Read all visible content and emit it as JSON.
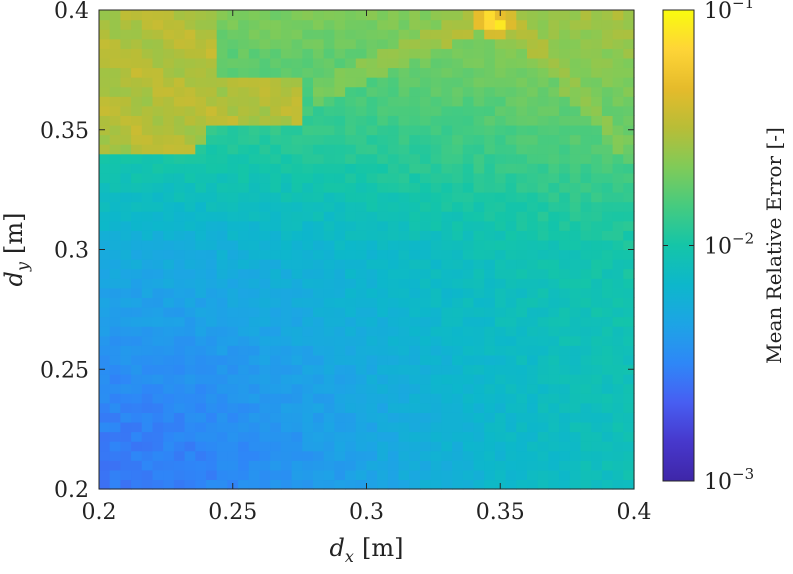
{
  "chart_data": {
    "type": "heatmap",
    "title": "",
    "xlabel": "d_x [m]",
    "xlabel_main": "d",
    "xlabel_sub": "x",
    "xlabel_unit": "[m]",
    "ylabel": "d_y [m]",
    "ylabel_main": "d",
    "ylabel_sub": "y",
    "ylabel_unit": "[m]",
    "xlim": [
      0.2,
      0.4
    ],
    "ylim": [
      0.2,
      0.4
    ],
    "grid": false,
    "x_ticks": [
      0.2,
      0.25,
      0.3,
      0.35,
      0.4
    ],
    "x_tick_labels": [
      "0.2",
      "0.25",
      "0.3",
      "0.35",
      "0.4"
    ],
    "y_ticks": [
      0.2,
      0.25,
      0.3,
      0.35,
      0.4
    ],
    "y_tick_labels": [
      "0.2",
      "0.25",
      "0.3",
      "0.35",
      "0.4"
    ],
    "grid_resolution": 50,
    "colormap": "parula",
    "color_scale": "log",
    "colorbar": {
      "label": "Mean Relative Error [-]",
      "range": [
        0.001,
        0.1
      ],
      "ticks": [
        {
          "value": 0.1,
          "mantissa": "10",
          "exponent": "−1"
        },
        {
          "value": 0.01,
          "mantissa": "10",
          "exponent": "−2"
        },
        {
          "value": 0.001,
          "mantissa": "10",
          "exponent": "−3"
        }
      ]
    },
    "approx_regions": [
      {
        "region": "top-left",
        "x_range": [
          0.2,
          0.28
        ],
        "y_range": [
          0.34,
          0.4
        ],
        "approx_error": 0.03
      },
      {
        "region": "upper-right band",
        "x_range": [
          0.28,
          0.4
        ],
        "y_range": [
          0.3,
          0.4
        ],
        "approx_error": 0.015
      },
      {
        "region": "bottom-left",
        "x_range": [
          0.2,
          0.23
        ],
        "y_range": [
          0.2,
          0.25
        ],
        "approx_error": 0.004
      },
      {
        "region": "hotspot",
        "x": 0.348,
        "y": 0.395,
        "approx_error": 0.07
      }
    ],
    "colors": {
      "low": "#3E26A8",
      "mid": "#15B3C8",
      "high": "#F9FB0E"
    }
  }
}
